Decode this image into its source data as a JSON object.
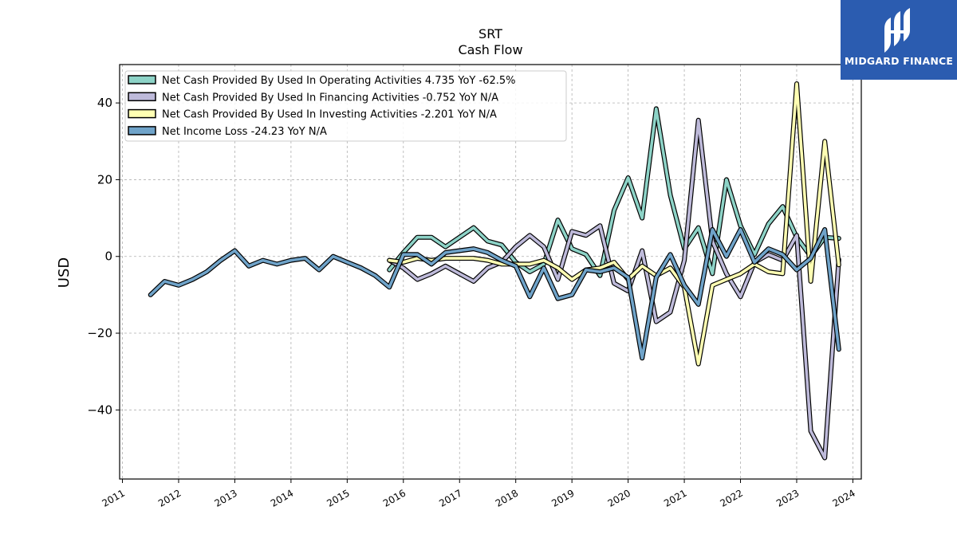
{
  "chart_data": {
    "type": "line",
    "title": "SRT",
    "subtitle": "Cash Flow",
    "ylabel": "USD",
    "xlabel": "",
    "ylim": [
      -58,
      50
    ],
    "xlim": [
      2010.95,
      2024.15
    ],
    "y_ticks": [
      40,
      20,
      0,
      -20,
      -40
    ],
    "y_tick_labels": [
      "40",
      "20",
      "0",
      "−20",
      "−40"
    ],
    "x_ticks": [
      2011,
      2012,
      2013,
      2014,
      2015,
      2016,
      2017,
      2018,
      2019,
      2020,
      2021,
      2022,
      2023,
      2024
    ],
    "x_tick_labels": [
      "2011",
      "2012",
      "2013",
      "2014",
      "2015",
      "2016",
      "2017",
      "2018",
      "2019",
      "2020",
      "2021",
      "2022",
      "2023",
      "2024"
    ],
    "grid": true,
    "legend_position": "top-left",
    "series": [
      {
        "name": "Net Cash Provided By Used In Operating Activities",
        "legend": "Net Cash Provided By Used In Operating Activities  4.735 YoY -62.5%",
        "color": "#8dd3c7",
        "points": [
          [
            2015.75,
            -3.5
          ],
          [
            2016.0,
            1.0
          ],
          [
            2016.25,
            5.0
          ],
          [
            2016.5,
            5.0
          ],
          [
            2016.75,
            2.5
          ],
          [
            2017.0,
            5.0
          ],
          [
            2017.25,
            7.5
          ],
          [
            2017.5,
            4.0
          ],
          [
            2017.75,
            3.0
          ],
          [
            2018.0,
            -1.5
          ],
          [
            2018.25,
            -4.0
          ],
          [
            2018.5,
            -2.0
          ],
          [
            2018.75,
            9.5
          ],
          [
            2019.0,
            2.0
          ],
          [
            2019.25,
            0.5
          ],
          [
            2019.5,
            -5.0
          ],
          [
            2019.75,
            12.0
          ],
          [
            2020.0,
            20.5
          ],
          [
            2020.25,
            10.0
          ],
          [
            2020.5,
            38.5
          ],
          [
            2020.75,
            16.0
          ],
          [
            2021.0,
            2.0
          ],
          [
            2021.25,
            7.5
          ],
          [
            2021.5,
            -4.5
          ],
          [
            2021.75,
            20.0
          ],
          [
            2022.0,
            8.0
          ],
          [
            2022.25,
            0.5
          ],
          [
            2022.5,
            8.5
          ],
          [
            2022.75,
            13.0
          ],
          [
            2023.0,
            5.0
          ],
          [
            2023.25,
            0.0
          ],
          [
            2023.5,
            5.0
          ],
          [
            2023.75,
            4.7
          ]
        ]
      },
      {
        "name": "Net Cash Provided By Used In Financing Activities",
        "legend": "Net Cash Provided By Used In Financing Activities  -0.752 YoY N/A",
        "color": "#bebada",
        "points": [
          [
            2015.75,
            -1.0
          ],
          [
            2016.0,
            -3.0
          ],
          [
            2016.25,
            -6.0
          ],
          [
            2016.5,
            -4.5
          ],
          [
            2016.75,
            -2.5
          ],
          [
            2017.0,
            -4.5
          ],
          [
            2017.25,
            -6.5
          ],
          [
            2017.5,
            -3.0
          ],
          [
            2017.75,
            -1.5
          ],
          [
            2018.0,
            2.5
          ],
          [
            2018.25,
            5.5
          ],
          [
            2018.5,
            2.5
          ],
          [
            2018.75,
            -6.0
          ],
          [
            2019.0,
            6.5
          ],
          [
            2019.25,
            5.5
          ],
          [
            2019.5,
            8.0
          ],
          [
            2019.75,
            -7.0
          ],
          [
            2020.0,
            -9.0
          ],
          [
            2020.25,
            1.5
          ],
          [
            2020.5,
            -17.0
          ],
          [
            2020.75,
            -14.5
          ],
          [
            2021.0,
            -1.0
          ],
          [
            2021.25,
            35.5
          ],
          [
            2021.5,
            4.0
          ],
          [
            2021.75,
            -4.5
          ],
          [
            2022.0,
            -10.5
          ],
          [
            2022.25,
            -1.5
          ],
          [
            2022.5,
            0.5
          ],
          [
            2022.75,
            -1.0
          ],
          [
            2023.0,
            5.5
          ],
          [
            2023.25,
            -45.5
          ],
          [
            2023.5,
            -52.5
          ],
          [
            2023.75,
            -0.8
          ]
        ]
      },
      {
        "name": "Net Cash Provided By Used In Investing Activities",
        "legend": "Net Cash Provided By Used In Investing Activities  -2.201 YoY N/A",
        "color": "#ffffb3",
        "points": [
          [
            2015.75,
            -1.0
          ],
          [
            2016.0,
            -1.5
          ],
          [
            2016.25,
            -0.5
          ],
          [
            2016.5,
            -1.0
          ],
          [
            2016.75,
            -0.5
          ],
          [
            2017.0,
            -0.5
          ],
          [
            2017.25,
            -0.5
          ],
          [
            2017.5,
            -1.0
          ],
          [
            2017.75,
            -2.0
          ],
          [
            2018.0,
            -2.0
          ],
          [
            2018.25,
            -2.0
          ],
          [
            2018.5,
            -1.0
          ],
          [
            2018.75,
            -3.0
          ],
          [
            2019.0,
            -6.0
          ],
          [
            2019.25,
            -3.5
          ],
          [
            2019.5,
            -3.0
          ],
          [
            2019.75,
            -1.5
          ],
          [
            2020.0,
            -6.0
          ],
          [
            2020.25,
            -2.5
          ],
          [
            2020.5,
            -5.0
          ],
          [
            2020.75,
            -3.0
          ],
          [
            2021.0,
            -8.0
          ],
          [
            2021.25,
            -28.0
          ],
          [
            2021.5,
            -7.5
          ],
          [
            2021.75,
            -6.0
          ],
          [
            2022.0,
            -4.5
          ],
          [
            2022.25,
            -2.0
          ],
          [
            2022.5,
            -4.0
          ],
          [
            2022.75,
            -4.5
          ],
          [
            2023.0,
            45.0
          ],
          [
            2023.25,
            -6.5
          ],
          [
            2023.5,
            30.0
          ],
          [
            2023.75,
            -2.2
          ]
        ]
      },
      {
        "name": "Net Income Loss",
        "legend": "Net Income Loss  -24.23 YoY N/A",
        "color": "#6fa3c9",
        "points": [
          [
            2011.5,
            -10.0
          ],
          [
            2011.75,
            -6.5
          ],
          [
            2012.0,
            -7.5
          ],
          [
            2012.25,
            -6.0
          ],
          [
            2012.5,
            -4.0
          ],
          [
            2012.75,
            -1.0
          ],
          [
            2013.0,
            1.5
          ],
          [
            2013.25,
            -2.5
          ],
          [
            2013.5,
            -1.0
          ],
          [
            2013.75,
            -2.0
          ],
          [
            2014.0,
            -1.0
          ],
          [
            2014.25,
            -0.5
          ],
          [
            2014.5,
            -3.5
          ],
          [
            2014.75,
            0.0
          ],
          [
            2015.0,
            -1.5
          ],
          [
            2015.25,
            -3.0
          ],
          [
            2015.5,
            -5.0
          ],
          [
            2015.75,
            -8.0
          ],
          [
            2016.0,
            0.5
          ],
          [
            2016.25,
            0.5
          ],
          [
            2016.5,
            -2.0
          ],
          [
            2016.75,
            1.0
          ],
          [
            2017.0,
            1.5
          ],
          [
            2017.25,
            2.0
          ],
          [
            2017.5,
            1.0
          ],
          [
            2017.75,
            -1.0
          ],
          [
            2018.0,
            -2.5
          ],
          [
            2018.25,
            -10.5
          ],
          [
            2018.5,
            -3.0
          ],
          [
            2018.75,
            -11.0
          ],
          [
            2019.0,
            -10.0
          ],
          [
            2019.25,
            -3.5
          ],
          [
            2019.5,
            -4.0
          ],
          [
            2019.75,
            -3.0
          ],
          [
            2020.0,
            -5.5
          ],
          [
            2020.25,
            -26.5
          ],
          [
            2020.5,
            -5.5
          ],
          [
            2020.75,
            0.5
          ],
          [
            2021.0,
            -7.5
          ],
          [
            2021.25,
            -12.5
          ],
          [
            2021.5,
            7.0
          ],
          [
            2021.75,
            0.0
          ],
          [
            2022.0,
            7.0
          ],
          [
            2022.25,
            -1.5
          ],
          [
            2022.5,
            2.0
          ],
          [
            2022.75,
            0.5
          ],
          [
            2023.0,
            -3.5
          ],
          [
            2023.25,
            -0.5
          ],
          [
            2023.5,
            7.0
          ],
          [
            2023.75,
            -24.2
          ]
        ]
      }
    ]
  },
  "logo": {
    "text": "MIDGARD FINANCE",
    "background": "#2b5cb0"
  }
}
